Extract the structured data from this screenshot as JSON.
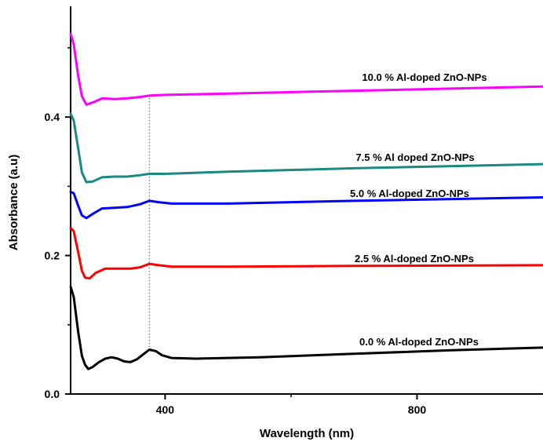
{
  "chart_data": {
    "type": "line",
    "title": "",
    "xlabel": "Wavelength (nm)",
    "ylabel": "Absorbance (a.u)",
    "xlim": [
      250,
      1000
    ],
    "ylim": [
      0.0,
      0.56
    ],
    "x_ticks": [
      400,
      800
    ],
    "x_tick_labels": [
      "400",
      "800"
    ],
    "y_ticks": [
      0.0,
      0.2,
      0.4
    ],
    "y_tick_labels": [
      "0.0",
      "0.2",
      "0.4"
    ],
    "grid": false,
    "legend": "none",
    "reference_line": {
      "x": 375,
      "style": "dotted"
    },
    "series": [
      {
        "name": "0.0 % Al-doped ZnO-NPs",
        "color": "#000000",
        "points": [
          [
            250,
            0.155
          ],
          [
            255,
            0.14
          ],
          [
            262,
            0.09
          ],
          [
            268,
            0.055
          ],
          [
            273,
            0.042
          ],
          [
            278,
            0.036
          ],
          [
            285,
            0.039
          ],
          [
            295,
            0.046
          ],
          [
            305,
            0.051
          ],
          [
            315,
            0.053
          ],
          [
            325,
            0.051
          ],
          [
            335,
            0.047
          ],
          [
            345,
            0.046
          ],
          [
            355,
            0.05
          ],
          [
            365,
            0.057
          ],
          [
            375,
            0.064
          ],
          [
            385,
            0.062
          ],
          [
            395,
            0.056
          ],
          [
            410,
            0.052
          ],
          [
            450,
            0.051
          ],
          [
            550,
            0.053
          ],
          [
            700,
            0.058
          ],
          [
            850,
            0.063
          ],
          [
            1000,
            0.067
          ]
        ]
      },
      {
        "name": "2.5 % Al-doped ZnO-NPs",
        "color": "#ff0000",
        "points": [
          [
            250,
            0.24
          ],
          [
            255,
            0.235
          ],
          [
            262,
            0.205
          ],
          [
            268,
            0.178
          ],
          [
            273,
            0.168
          ],
          [
            280,
            0.167
          ],
          [
            290,
            0.175
          ],
          [
            305,
            0.181
          ],
          [
            325,
            0.181
          ],
          [
            345,
            0.181
          ],
          [
            360,
            0.183
          ],
          [
            375,
            0.188
          ],
          [
            390,
            0.186
          ],
          [
            410,
            0.184
          ],
          [
            500,
            0.184
          ],
          [
            700,
            0.185
          ],
          [
            1000,
            0.186
          ]
        ]
      },
      {
        "name": "5.0 % Al-doped ZnO-NPs",
        "color": "#0000ff",
        "points": [
          [
            250,
            0.292
          ],
          [
            255,
            0.29
          ],
          [
            262,
            0.272
          ],
          [
            268,
            0.258
          ],
          [
            275,
            0.254
          ],
          [
            285,
            0.26
          ],
          [
            300,
            0.268
          ],
          [
            320,
            0.269
          ],
          [
            340,
            0.27
          ],
          [
            360,
            0.274
          ],
          [
            375,
            0.279
          ],
          [
            390,
            0.277
          ],
          [
            410,
            0.275
          ],
          [
            500,
            0.275
          ],
          [
            700,
            0.279
          ],
          [
            1000,
            0.284
          ]
        ]
      },
      {
        "name": "7.5 % Al doped ZnO-NPs",
        "color": "#1a8a80",
        "points": [
          [
            250,
            0.405
          ],
          [
            255,
            0.395
          ],
          [
            262,
            0.355
          ],
          [
            268,
            0.32
          ],
          [
            275,
            0.306
          ],
          [
            285,
            0.307
          ],
          [
            300,
            0.313
          ],
          [
            320,
            0.314
          ],
          [
            340,
            0.314
          ],
          [
            360,
            0.316
          ],
          [
            375,
            0.318
          ],
          [
            400,
            0.318
          ],
          [
            500,
            0.321
          ],
          [
            700,
            0.326
          ],
          [
            1000,
            0.332
          ]
        ]
      },
      {
        "name": "10.0 % Al-doped ZnO-NPs",
        "color": "#ff00ff",
        "points": [
          [
            250,
            0.52
          ],
          [
            255,
            0.505
          ],
          [
            262,
            0.46
          ],
          [
            268,
            0.43
          ],
          [
            275,
            0.418
          ],
          [
            285,
            0.421
          ],
          [
            300,
            0.427
          ],
          [
            320,
            0.426
          ],
          [
            340,
            0.427
          ],
          [
            360,
            0.429
          ],
          [
            375,
            0.431
          ],
          [
            400,
            0.432
          ],
          [
            500,
            0.434
          ],
          [
            700,
            0.438
          ],
          [
            1000,
            0.444
          ]
        ]
      }
    ]
  }
}
